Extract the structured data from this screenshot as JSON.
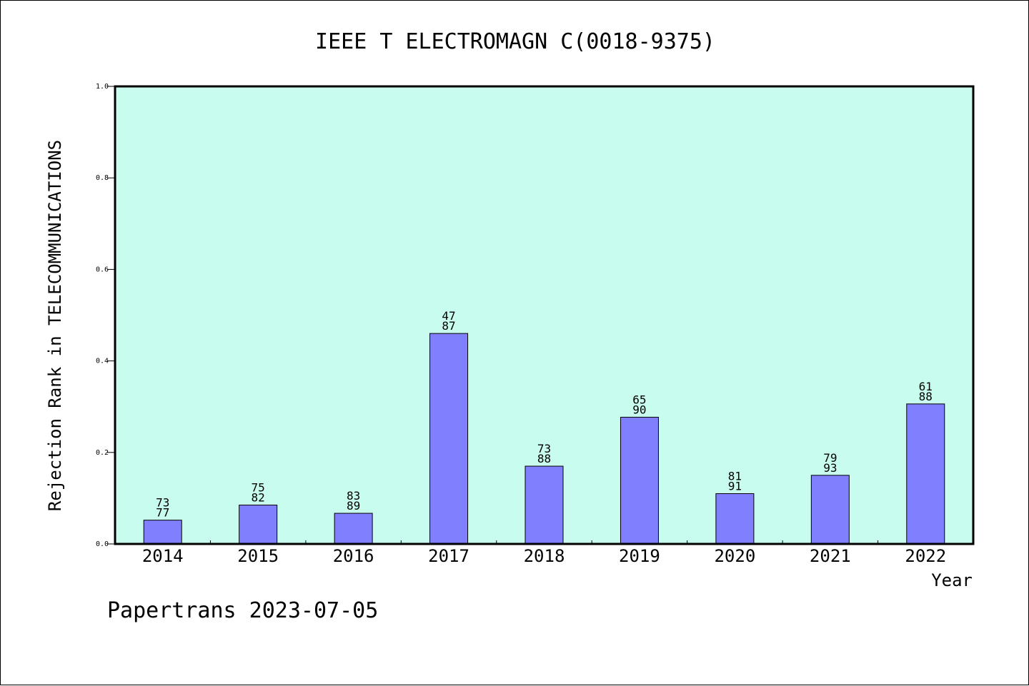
{
  "chart_data": {
    "type": "bar",
    "title": "IEEE T ELECTROMAGN C(0018-9375)",
    "xlabel": "Year",
    "ylabel": "Rejection Rank in TELECOMMUNICATIONS",
    "categories": [
      "2014",
      "2015",
      "2016",
      "2017",
      "2018",
      "2019",
      "2020",
      "2021",
      "2022"
    ],
    "values": [
      0.052,
      0.085,
      0.067,
      0.46,
      0.17,
      0.277,
      0.11,
      0.15,
      0.306
    ],
    "bar_labels_top": [
      "73",
      "75",
      "83",
      "47",
      "73",
      "65",
      "81",
      "79",
      "61"
    ],
    "bar_labels_bottom": [
      "77",
      "82",
      "89",
      "87",
      "88",
      "90",
      "91",
      "93",
      "88"
    ],
    "ylim": [
      0.0,
      1.0
    ],
    "yticks": [
      "0.0",
      "0.2",
      "0.4",
      "0.6",
      "0.8",
      "1.0"
    ],
    "grid": false,
    "colors": {
      "plot_background": "#c8fcee",
      "bar_fill": "#8080ff",
      "bar_stroke": "#000000",
      "axis": "#000000"
    }
  },
  "footer": "Papertrans 2023-07-05"
}
